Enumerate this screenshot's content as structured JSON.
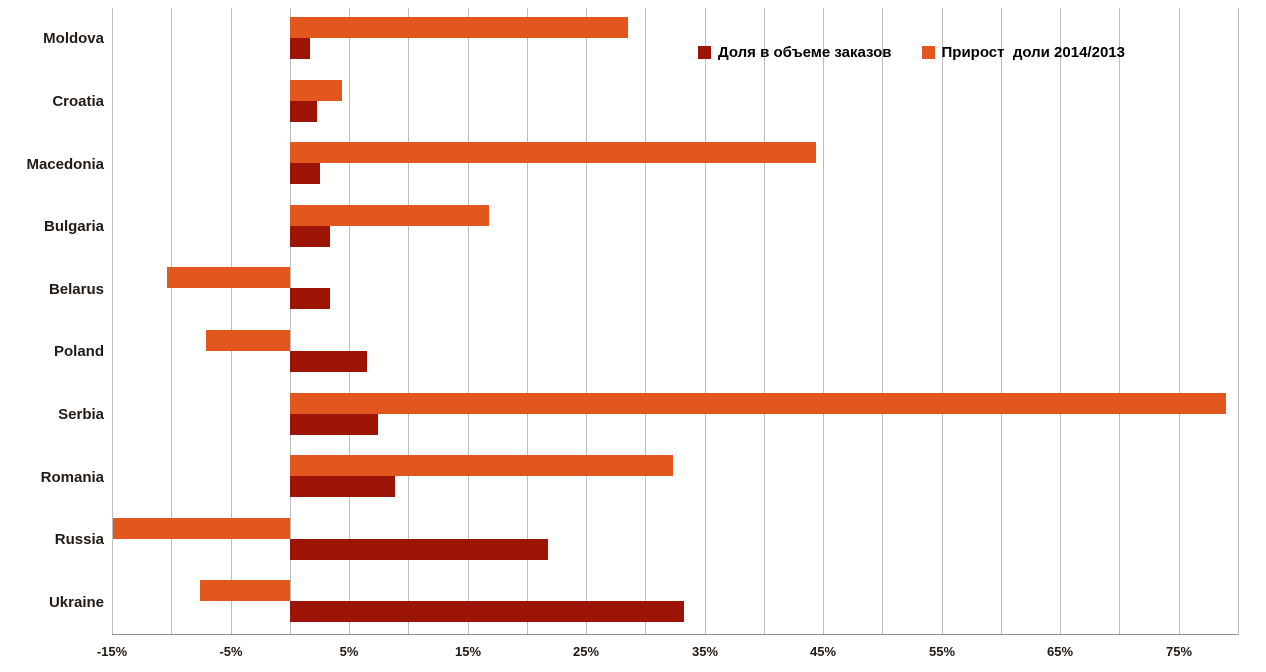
{
  "chart_data": {
    "type": "bar",
    "orientation": "horizontal",
    "title": "",
    "categories": [
      "Moldova",
      "Croatia",
      "Macedonia",
      "Bulgaria",
      "Belarus",
      "Poland",
      "Serbia",
      "Romania",
      "Russia",
      "Ukraine"
    ],
    "series": [
      {
        "name": "Доля в объеме заказов",
        "color": "#9b1406",
        "values": [
          1.7,
          2.3,
          2.5,
          3.4,
          3.4,
          6.5,
          7.4,
          8.9,
          21.8,
          33.2
        ]
      },
      {
        "name": "Прирост  доли 2014/2013",
        "color": "#e2571d",
        "values": [
          28.5,
          4.4,
          44.4,
          16.8,
          -10.4,
          -7.1,
          79.0,
          32.3,
          -14.9,
          -7.6
        ]
      }
    ],
    "xlim": [
      -15,
      80
    ],
    "grid": true,
    "grid_step": 5,
    "tick_values": [
      -15,
      -5,
      5,
      15,
      25,
      35,
      45,
      55,
      65,
      75
    ],
    "tick_labels": [
      "-15%",
      "-5%",
      "5%",
      "15%",
      "25%",
      "35%",
      "45%",
      "55%",
      "65%",
      "75%"
    ],
    "legend_position": "top-right",
    "xlabel": "",
    "ylabel": ""
  },
  "legend": {
    "items": [
      {
        "label": "Доля в объеме заказов",
        "color": "#9b1406"
      },
      {
        "label": "Прирост  доли 2014/2013",
        "color": "#e2571d"
      }
    ]
  },
  "colors": {
    "grid": "#bdbdbd",
    "axis": "#8f8f8f",
    "text": "#221a14",
    "background": "#ffffff"
  }
}
